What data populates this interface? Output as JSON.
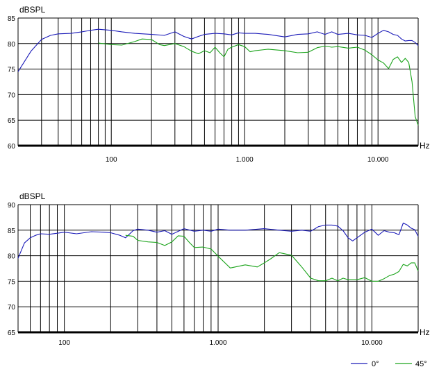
{
  "colors": {
    "series_0": "#1a1ab8",
    "series_45": "#1aa31a",
    "grid": "#000000"
  },
  "chart_data": [
    {
      "type": "line",
      "ylabel": "dBSPL",
      "xlabel": "Hz",
      "x_scale": "log",
      "xlim": [
        20,
        20000
      ],
      "ylim": [
        60,
        85
      ],
      "y_ticks": [
        "85",
        "80",
        "75",
        "70",
        "65",
        "60"
      ],
      "x_tick_labels": [
        {
          "value": 100,
          "label": "100"
        },
        {
          "value": 1000,
          "label": "1.000"
        },
        {
          "value": 10000,
          "label": "10.000"
        }
      ],
      "grid": true,
      "series": [
        {
          "name": "0°",
          "color": "#1a1ab8",
          "x": [
            20,
            25,
            30,
            35,
            40,
            50,
            60,
            70,
            80,
            100,
            120,
            150,
            200,
            250,
            300,
            350,
            400,
            450,
            500,
            600,
            700,
            800,
            900,
            1000,
            1200,
            1500,
            2000,
            2500,
            3000,
            3500,
            4000,
            4500,
            5000,
            6000,
            7000,
            8000,
            9000,
            10000,
            11000,
            12000,
            13000,
            14000,
            15000,
            16000,
            17000,
            18000,
            19000,
            20000
          ],
          "y": [
            74.5,
            78.5,
            80.8,
            81.6,
            81.9,
            82.0,
            82.3,
            82.6,
            82.8,
            82.6,
            82.3,
            82.0,
            81.8,
            81.6,
            82.3,
            81.4,
            80.9,
            81.4,
            81.8,
            82.0,
            81.9,
            81.7,
            82.1,
            82.0,
            82.0,
            81.8,
            81.3,
            81.8,
            81.9,
            82.3,
            81.8,
            82.3,
            81.8,
            82.0,
            81.7,
            81.6,
            81.2,
            82.0,
            82.6,
            82.3,
            81.8,
            81.6,
            80.9,
            80.5,
            80.6,
            80.6,
            80.2,
            79.6
          ]
        },
        {
          "name": "45°",
          "color": "#1aa31a",
          "x": [
            80,
            100,
            120,
            150,
            170,
            200,
            230,
            250,
            300,
            350,
            400,
            450,
            500,
            550,
            600,
            650,
            700,
            750,
            800,
            900,
            1000,
            1100,
            1200,
            1500,
            2000,
            2500,
            3000,
            3500,
            4000,
            4500,
            5000,
            6000,
            7000,
            8000,
            9000,
            10000,
            11000,
            12000,
            13000,
            14000,
            15000,
            16000,
            17000,
            18000,
            19000,
            20000
          ],
          "y": [
            80.1,
            79.8,
            79.7,
            80.4,
            80.9,
            80.8,
            79.8,
            79.6,
            80.0,
            79.4,
            78.5,
            78.0,
            78.6,
            78.2,
            79.3,
            78.2,
            77.4,
            78.9,
            79.3,
            79.8,
            79.4,
            78.4,
            78.6,
            78.9,
            78.6,
            78.2,
            78.3,
            79.2,
            79.5,
            79.3,
            79.4,
            79.1,
            79.3,
            78.7,
            77.8,
            76.8,
            76.2,
            75.1,
            76.9,
            77.4,
            76.3,
            77.1,
            76.3,
            72.5,
            65.7,
            64.0
          ]
        }
      ]
    },
    {
      "type": "line",
      "ylabel": "dBSPL",
      "xlabel": "Hz",
      "x_scale": "log",
      "xlim": [
        50,
        20000
      ],
      "ylim": [
        65,
        90
      ],
      "y_ticks": [
        "90",
        "85",
        "80",
        "75",
        "70",
        "65"
      ],
      "x_tick_labels": [
        {
          "value": 100,
          "label": "100"
        },
        {
          "value": 1000,
          "label": "1.000"
        },
        {
          "value": 10000,
          "label": "10.000"
        }
      ],
      "grid": true,
      "series": [
        {
          "name": "0°",
          "color": "#1a1ab8",
          "x": [
            50,
            55,
            60,
            65,
            70,
            80,
            90,
            100,
            120,
            150,
            180,
            200,
            230,
            250,
            280,
            300,
            350,
            400,
            450,
            500,
            600,
            700,
            800,
            900,
            1000,
            1200,
            1500,
            2000,
            2500,
            3000,
            3500,
            4000,
            4500,
            5000,
            5500,
            6000,
            6500,
            7000,
            7500,
            8000,
            9000,
            10000,
            11000,
            12000,
            13000,
            14000,
            15000,
            16000,
            17000,
            18000,
            19000,
            20000
          ],
          "y": [
            79.5,
            82.5,
            83.5,
            84.0,
            84.3,
            84.2,
            84.4,
            84.6,
            84.3,
            84.7,
            84.6,
            84.5,
            84.0,
            83.5,
            84.9,
            85.2,
            85.0,
            84.6,
            84.9,
            84.2,
            85.3,
            84.8,
            85.0,
            84.8,
            85.2,
            85.0,
            85.0,
            85.3,
            85.0,
            84.8,
            85.0,
            84.8,
            85.7,
            86.0,
            86.0,
            85.8,
            84.9,
            83.5,
            82.9,
            83.5,
            84.6,
            85.2,
            84.0,
            84.9,
            84.6,
            84.5,
            84.1,
            86.4,
            86.0,
            85.4,
            85.1,
            83.8
          ]
        },
        {
          "name": "45°",
          "color": "#1aa31a",
          "x": [
            250,
            280,
            300,
            350,
            400,
            450,
            500,
            550,
            600,
            650,
            700,
            800,
            900,
            1000,
            1200,
            1500,
            1800,
            2000,
            2200,
            2500,
            3000,
            3500,
            4000,
            4500,
            5000,
            5500,
            6000,
            6500,
            7000,
            8000,
            9000,
            10000,
            11000,
            12000,
            13000,
            14000,
            15000,
            16000,
            17000,
            18000,
            19000,
            20000
          ],
          "y": [
            84.0,
            83.8,
            83.0,
            82.7,
            82.6,
            82.0,
            82.7,
            83.9,
            83.8,
            82.6,
            81.6,
            81.7,
            81.3,
            79.9,
            77.6,
            78.2,
            77.8,
            78.6,
            79.4,
            80.6,
            80.1,
            77.8,
            75.6,
            75.1,
            75.1,
            75.6,
            75.1,
            75.6,
            75.3,
            75.3,
            75.7,
            75.0,
            75.0,
            75.5,
            76.1,
            76.4,
            76.9,
            78.3,
            78.0,
            78.6,
            78.6,
            77.0
          ]
        }
      ]
    }
  ],
  "legend": {
    "placement": "bottom-right",
    "items": [
      {
        "label": "0°"
      },
      {
        "label": "45°"
      }
    ]
  }
}
